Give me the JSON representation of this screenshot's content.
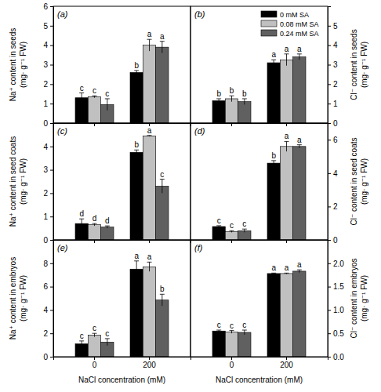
{
  "chart_data": [
    {
      "type": "bar",
      "title": "(a)",
      "y_label": [
        "Na⁺ content in seeds",
        "(mg· g⁻¹ FW)"
      ],
      "categories": [
        null,
        null
      ],
      "tick_labels": "y",
      "ylim": [
        0,
        6
      ],
      "yticks": [
        0,
        1,
        2,
        3,
        4,
        5,
        6
      ],
      "series": [
        {
          "color": "#000000",
          "values": [
            1.3,
            2.6
          ],
          "errors": [
            0.25,
            0.1
          ],
          "letters": [
            "c",
            "b"
          ]
        },
        {
          "color": "#c0c0c0",
          "values": [
            1.35,
            4.0
          ],
          "errors": [
            0.05,
            0.3
          ],
          "letters": [
            "c",
            "a"
          ]
        },
        {
          "color": "#606060",
          "values": [
            0.95,
            3.9
          ],
          "errors": [
            0.3,
            0.3
          ],
          "letters": [
            "c",
            "a"
          ]
        }
      ]
    },
    {
      "type": "bar",
      "title": "(b)",
      "y_label": [
        "Cl⁻ content in seeds",
        "(mg· g⁻¹ FW)"
      ],
      "categories": [
        null,
        null
      ],
      "tick_labels": "y",
      "ylim": [
        0,
        6
      ],
      "yticks": [
        0,
        1,
        2,
        3,
        4,
        5
      ],
      "legend": "upper right",
      "series": [
        {
          "name": "0 mM SA",
          "color": "#000000",
          "values": [
            1.15,
            3.1
          ],
          "errors": [
            0.1,
            0.15
          ],
          "letters": [
            "b",
            "a"
          ]
        },
        {
          "name": "0.08 mM SA",
          "color": "#c0c0c0",
          "values": [
            1.25,
            3.25
          ],
          "errors": [
            0.15,
            0.3
          ],
          "letters": [
            "b",
            "a"
          ]
        },
        {
          "name": "0.24 mM SA",
          "color": "#606060",
          "values": [
            1.1,
            3.4
          ],
          "errors": [
            0.15,
            0.15
          ],
          "letters": [
            "b",
            "a"
          ]
        }
      ]
    },
    {
      "type": "bar",
      "title": "(c)",
      "y_label": [
        "Na⁺ content in seed coats",
        "(mg· g⁻¹ FW)"
      ],
      "categories": [
        null,
        null
      ],
      "tick_labels": "y",
      "ylim": [
        0,
        5
      ],
      "yticks": [
        0,
        1,
        2,
        3,
        4
      ],
      "series": [
        {
          "color": "#000000",
          "values": [
            0.7,
            3.75
          ],
          "errors": [
            0.2,
            0.1
          ],
          "letters": [
            "d",
            "b"
          ]
        },
        {
          "color": "#c0c0c0",
          "values": [
            0.65,
            4.45
          ],
          "errors": [
            0.05,
            0.02
          ],
          "letters": [
            "d",
            "a"
          ]
        },
        {
          "color": "#606060",
          "values": [
            0.55,
            2.3
          ],
          "errors": [
            0.05,
            0.3
          ],
          "letters": [
            "d",
            "c"
          ]
        }
      ]
    },
    {
      "type": "bar",
      "title": "(d)",
      "y_label": [
        "Cl⁻ content in seed coats",
        "(mg· g⁻¹ FW)"
      ],
      "categories": [
        null,
        null
      ],
      "tick_labels": "y",
      "ylim": [
        0,
        7
      ],
      "yticks": [
        0,
        2,
        4,
        6
      ],
      "series": [
        {
          "color": "#000000",
          "values": [
            0.8,
            4.6
          ],
          "errors": [
            0.05,
            0.15
          ],
          "letters": [
            "c",
            "b"
          ]
        },
        {
          "color": "#c0c0c0",
          "values": [
            0.5,
            5.6
          ],
          "errors": [
            0.05,
            0.3
          ],
          "letters": [
            "c",
            "a"
          ]
        },
        {
          "color": "#606060",
          "values": [
            0.55,
            5.6
          ],
          "errors": [
            0.1,
            0.1
          ],
          "letters": [
            "c",
            "a"
          ]
        }
      ]
    },
    {
      "type": "bar",
      "title": "(e)",
      "y_label": [
        "Na⁺ content in embryos",
        "(mg· g⁻¹ FW)"
      ],
      "x_label": "NaCl concentration (mM)",
      "categories": [
        "0",
        "200"
      ],
      "ylim": [
        0,
        10
      ],
      "yticks": [
        0,
        2,
        4,
        6,
        8
      ],
      "series": [
        {
          "color": "#000000",
          "values": [
            1.1,
            7.5
          ],
          "errors": [
            0.25,
            0.7
          ],
          "letters": [
            "c",
            "a"
          ]
        },
        {
          "color": "#c0c0c0",
          "values": [
            1.85,
            7.7
          ],
          "errors": [
            0.15,
            0.4
          ],
          "letters": [
            "c",
            "a"
          ]
        },
        {
          "color": "#606060",
          "values": [
            1.25,
            4.85
          ],
          "errors": [
            0.3,
            0.5
          ],
          "letters": [
            "c",
            "b"
          ]
        }
      ]
    },
    {
      "type": "bar",
      "title": "(f)",
      "y_label": [
        "Cl⁻ content in embryos",
        "(mg· g⁻¹ FW)"
      ],
      "x_label": "NaCl concentration (mM)",
      "categories": [
        "0",
        "200"
      ],
      "ylim": [
        0,
        2.5
      ],
      "yticks": [
        {
          "value": 0,
          "label": "0.0"
        },
        0.5,
        {
          "value": 1,
          "label": "1.0"
        },
        1.5,
        {
          "value": 2,
          "label": "2.0"
        }
      ],
      "series": [
        {
          "color": "#000000",
          "values": [
            0.55,
            1.78
          ],
          "errors": [
            0.02,
            0.01
          ],
          "letters": [
            "c",
            "a"
          ]
        },
        {
          "color": "#c0c0c0",
          "values": [
            0.53,
            1.78
          ],
          "errors": [
            0.03,
            0.01
          ],
          "letters": [
            "c",
            "a"
          ]
        },
        {
          "color": "#606060",
          "values": [
            0.52,
            1.83
          ],
          "errors": [
            0.05,
            0.03
          ],
          "letters": [
            "c",
            "a"
          ]
        }
      ]
    }
  ]
}
